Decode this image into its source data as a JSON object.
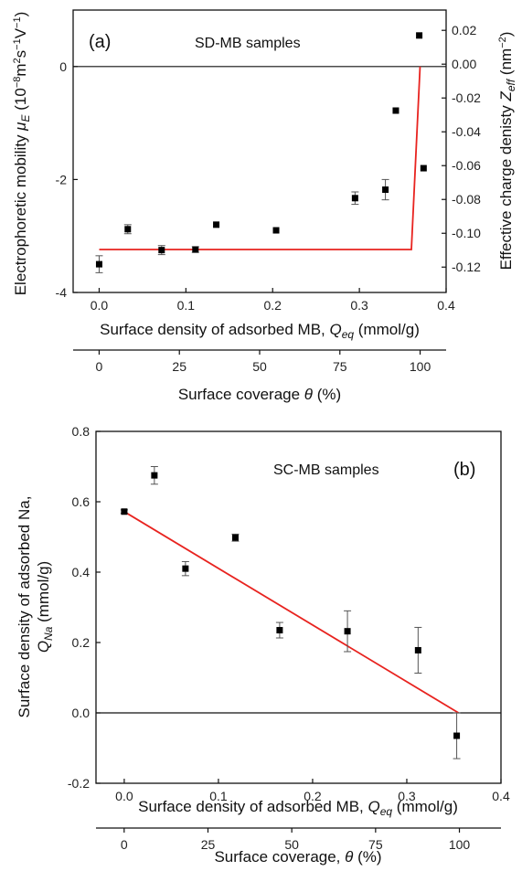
{
  "figure": {
    "panel_a": {
      "label": "(a)",
      "annotation": "SD-MB samples",
      "xlabel": {
        "pre": "Surface density of adsorbed MB, ",
        "sym": "Q",
        "sub": "eq",
        "post": " (mmol/g)"
      },
      "x2label": {
        "pre": "Surface coverage ",
        "sym": "θ",
        "post": " (%)"
      },
      "ylabel": {
        "pre": "Electrophoretic mobility ",
        "sym": "μ",
        "sub": "E",
        "post": " (10",
        "sup1": "−8",
        "mid": "m",
        "sup2": "2",
        "mid2": "s",
        "sup3": "−1",
        "mid3": "V",
        "sup4": "−1",
        "end": ")"
      },
      "y2label": {
        "pre": "Effective charge denisty ",
        "sym": "Z",
        "sub": "eff",
        "post": " (nm",
        "sup": "−2",
        "end": ")"
      }
    },
    "panel_b": {
      "label": "(b)",
      "annotation": "SC-MB samples",
      "xlabel": {
        "pre": "Surface density of adsorbed MB, ",
        "sym": "Q",
        "sub": "eq",
        "post": " (mmol/g)"
      },
      "x2label": {
        "pre": "Surface coverage, ",
        "sym": "θ",
        "post": " (%)"
      },
      "ylabel_line1": "Surface density of adsorbed Na,",
      "ylabel_line2": {
        "sym": "Q",
        "sub": "Na",
        "post": " (mmol/g)"
      }
    }
  },
  "colors": {
    "fit": "#e8231f",
    "marker": "#000000",
    "axis": "#111111"
  },
  "chart_data": [
    {
      "type": "scatter",
      "xlim": [
        -0.03,
        0.4
      ],
      "ylim": [
        -4,
        1
      ],
      "x_ticks": [
        "0.0",
        "0.1",
        "0.2",
        "0.3",
        "0.4"
      ],
      "y_ticks": [
        "-4",
        "-2",
        "0"
      ],
      "y2_ticks": [
        "-0.12",
        "-0.10",
        "-0.08",
        "-0.06",
        "-0.04",
        "-0.02",
        "0.00",
        "0.02"
      ],
      "y2_values": [
        -0.12,
        -0.1,
        -0.08,
        -0.06,
        -0.04,
        -0.02,
        0.0,
        0.02
      ],
      "y2lim": [
        -0.135,
        0.032
      ],
      "x2_ticks": [
        "0",
        "25",
        "50",
        "75",
        "100"
      ],
      "x2_values": [
        0,
        25,
        50,
        75,
        100
      ],
      "x2lim": [
        -8.1,
        108.1
      ],
      "reference_line_y": 0,
      "points": [
        {
          "x": 0.0,
          "y": -3.5,
          "err": 0.15
        },
        {
          "x": 0.033,
          "y": -2.88,
          "err": 0.08
        },
        {
          "x": 0.072,
          "y": -3.25,
          "err": 0.08
        },
        {
          "x": 0.111,
          "y": -3.24,
          "err": 0.05
        },
        {
          "x": 0.135,
          "y": -2.8,
          "err": 0
        },
        {
          "x": 0.204,
          "y": -2.9,
          "err": 0
        },
        {
          "x": 0.295,
          "y": -2.33,
          "err": 0.11
        },
        {
          "x": 0.33,
          "y": -2.18,
          "err": 0.18
        },
        {
          "x": 0.342,
          "y": -0.78,
          "err": 0
        },
        {
          "x": 0.369,
          "y": 0.55,
          "err": 0
        },
        {
          "x": 0.374,
          "y": -1.8,
          "err": 0
        }
      ],
      "fit_line": {
        "x": [
          0.0,
          0.36,
          0.37
        ],
        "y": [
          -3.24,
          -3.24,
          0.0
        ]
      }
    },
    {
      "type": "scatter",
      "xlim": [
        -0.03,
        0.4
      ],
      "ylim": [
        -0.2,
        0.8
      ],
      "x_ticks": [
        "0.0",
        "0.1",
        "0.2",
        "0.3",
        "0.4"
      ],
      "y_ticks": [
        "-0.2",
        "0.0",
        "0.2",
        "0.4",
        "0.6",
        "0.8"
      ],
      "x2_ticks": [
        "0",
        "25",
        "50",
        "75",
        "100"
      ],
      "x2_values": [
        0,
        25,
        50,
        75,
        100
      ],
      "x2lim": [
        -8.4,
        112.4
      ],
      "reference_line_y": 0,
      "points": [
        {
          "x": 0.0,
          "y": 0.572,
          "err": 0.005
        },
        {
          "x": 0.032,
          "y": 0.675,
          "err": 0.025
        },
        {
          "x": 0.065,
          "y": 0.41,
          "err": 0.02
        },
        {
          "x": 0.118,
          "y": 0.498,
          "err": 0.01
        },
        {
          "x": 0.165,
          "y": 0.235,
          "err": 0.022
        },
        {
          "x": 0.237,
          "y": 0.232,
          "err": 0.058
        },
        {
          "x": 0.312,
          "y": 0.178,
          "err": 0.065
        },
        {
          "x": 0.353,
          "y": -0.065,
          "err": 0.065
        }
      ],
      "fit_line": {
        "x": [
          0.0,
          0.355
        ],
        "y": [
          0.572,
          0.0
        ]
      }
    }
  ]
}
